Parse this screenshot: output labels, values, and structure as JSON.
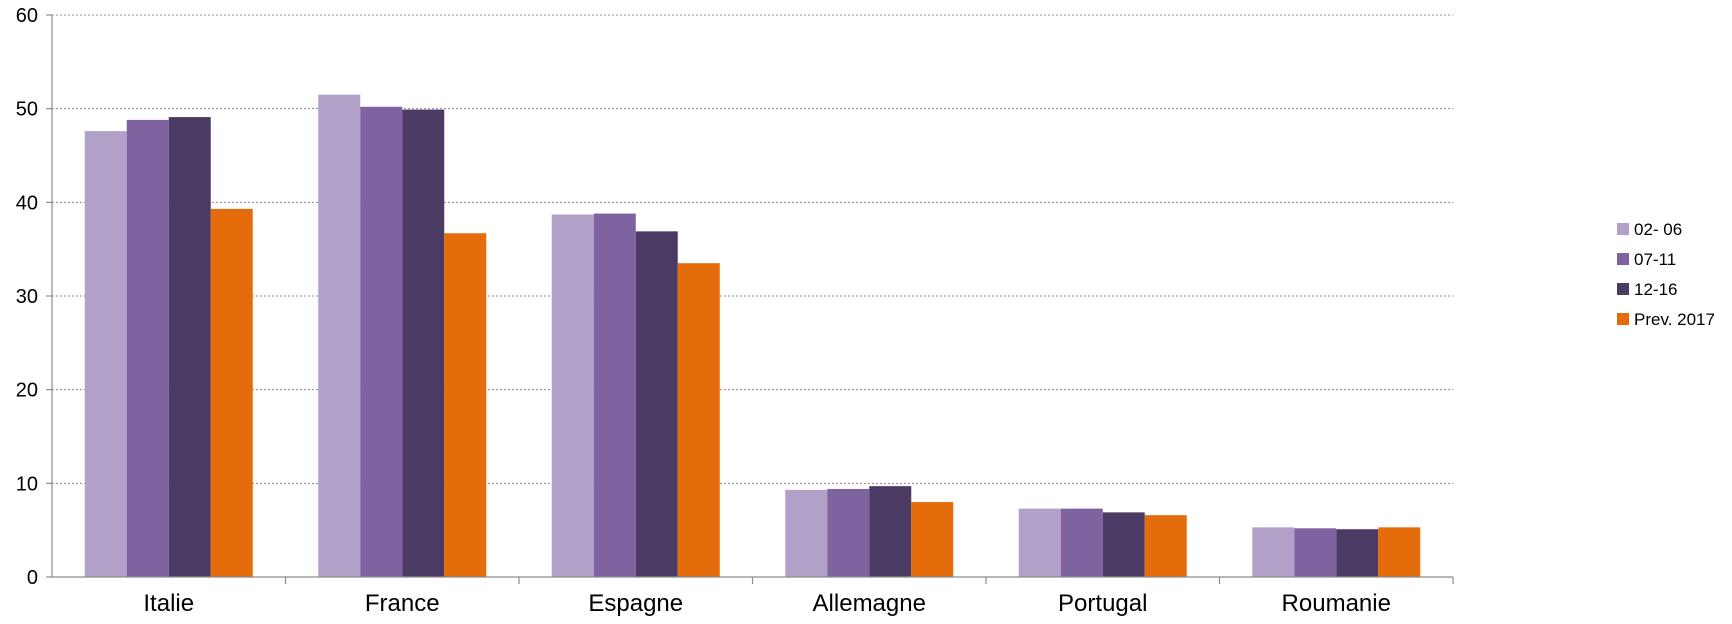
{
  "chart_data": {
    "type": "bar",
    "title": "",
    "xlabel": "",
    "ylabel": "",
    "ylim": [
      0,
      60
    ],
    "yticks": [
      0,
      10,
      20,
      30,
      40,
      50,
      60
    ],
    "grid": true,
    "legend_position": "right",
    "categories": [
      "Italie",
      "France",
      "Espagne",
      "Allemagne",
      "Portugal",
      "Roumanie"
    ],
    "series": [
      {
        "name": "02- 06",
        "color": "#b1a1c9",
        "values": [
          47.6,
          51.5,
          38.7,
          9.3,
          7.3,
          5.3
        ]
      },
      {
        "name": "07-11",
        "color": "#7f63a1",
        "values": [
          48.8,
          50.2,
          38.8,
          9.4,
          7.3,
          5.2
        ]
      },
      {
        "name": "12-16",
        "color": "#4b3a63",
        "values": [
          49.1,
          49.9,
          36.9,
          9.7,
          6.9,
          5.1
        ]
      },
      {
        "name": "Prev. 2017",
        "color": "#e46c0a",
        "values": [
          39.3,
          36.7,
          33.5,
          8.0,
          6.6,
          5.3
        ]
      }
    ]
  }
}
